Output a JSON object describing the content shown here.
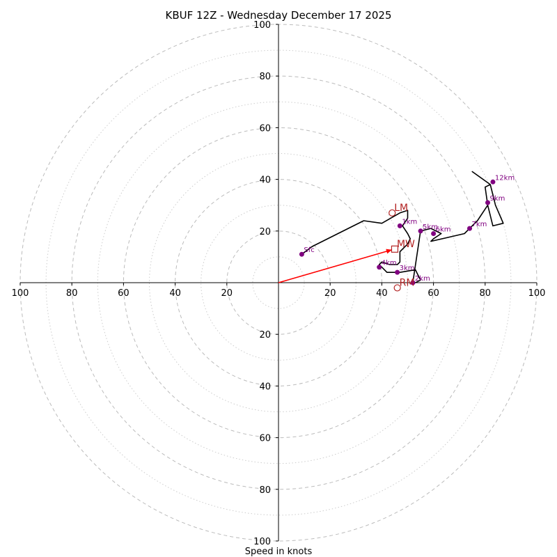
{
  "chart_data": {
    "type": "hodograph",
    "title": "KBUF 12Z - Wednesday December 17 2025",
    "xlabel": "Speed in knots",
    "range": [
      -100,
      100
    ],
    "rings_major": [
      20,
      40,
      60,
      80,
      100
    ],
    "rings_minor": [
      10,
      30,
      50,
      70,
      90
    ],
    "tick_values": [
      20,
      40,
      60,
      80,
      100
    ],
    "tick_labels": [
      "20",
      "40",
      "60",
      "80",
      "100"
    ],
    "hodograph_line": [
      [
        9,
        11
      ],
      [
        13,
        14
      ],
      [
        33,
        24
      ],
      [
        40,
        23
      ],
      [
        47,
        27
      ],
      [
        50,
        28
      ],
      [
        50,
        25
      ],
      [
        48,
        22
      ],
      [
        50,
        19
      ],
      [
        51,
        17
      ],
      [
        50,
        15
      ],
      [
        48,
        13
      ],
      [
        47,
        12
      ],
      [
        47,
        10
      ],
      [
        47,
        8
      ],
      [
        46,
        7
      ],
      [
        43,
        7
      ],
      [
        40,
        8
      ],
      [
        39,
        7
      ],
      [
        41,
        5
      ],
      [
        42,
        4
      ],
      [
        47,
        4
      ],
      [
        53,
        5
      ],
      [
        54,
        3
      ],
      [
        55,
        1
      ],
      [
        53,
        0
      ],
      [
        52,
        0
      ],
      [
        55,
        20
      ],
      [
        59,
        21
      ],
      [
        63,
        19
      ],
      [
        60,
        17
      ],
      [
        59,
        16
      ],
      [
        72,
        19
      ],
      [
        74,
        21
      ],
      [
        77,
        24
      ],
      [
        81,
        30
      ],
      [
        80,
        37
      ],
      [
        82,
        38
      ],
      [
        75,
        43
      ],
      [
        82,
        38
      ],
      [
        84,
        30
      ],
      [
        87,
        23
      ],
      [
        83,
        22
      ],
      [
        81,
        30
      ]
    ],
    "height_markers": [
      {
        "label": "Sfc",
        "u": 9,
        "v": 11
      },
      {
        "label": "1km",
        "u": 47,
        "v": 22
      },
      {
        "label": "2km",
        "u": 52,
        "v": 0
      },
      {
        "label": "3km",
        "u": 46,
        "v": 4
      },
      {
        "label": "4km",
        "u": 39,
        "v": 6
      },
      {
        "label": "5km",
        "u": 55,
        "v": 20
      },
      {
        "label": "6km",
        "u": 60,
        "v": 19
      },
      {
        "label": "7km",
        "u": 74,
        "v": 21
      },
      {
        "label": "9km",
        "u": 81,
        "v": 31
      },
      {
        "label": "12km",
        "u": 83,
        "v": 39
      }
    ],
    "storm_motion": {
      "LM": {
        "label": "LM",
        "u": 44,
        "v": 27
      },
      "MW": {
        "label": "MW",
        "u": 45,
        "v": 13
      },
      "RM": {
        "label": "RM",
        "u": 46,
        "v": -2
      }
    },
    "colors": {
      "line": "#000000",
      "marker": "#800080",
      "storm": "#b22222",
      "vector": "#ff0000",
      "grid": "#bbbbbb"
    }
  }
}
